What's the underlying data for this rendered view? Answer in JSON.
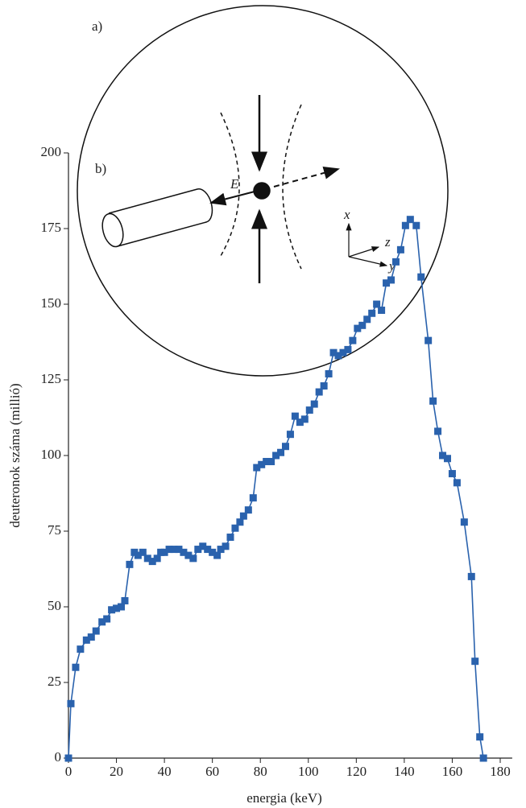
{
  "diagram": {
    "label": "a)",
    "field_label": "E",
    "axis_x": "x",
    "axis_z": "z",
    "axis_y": "y"
  },
  "chart_data": {
    "type": "line",
    "annotation": "b)",
    "xlabel": "energia (keV)",
    "ylabel": "deuteronok száma (millió)",
    "xlim": [
      0,
      185
    ],
    "ylim": [
      0,
      200
    ],
    "xticks": [
      0,
      20,
      40,
      60,
      80,
      100,
      120,
      140,
      160,
      180
    ],
    "yticks": [
      0,
      25,
      50,
      75,
      100,
      125,
      150,
      175,
      200
    ],
    "series": [
      {
        "color": "#2a62ad",
        "x": [
          0,
          1,
          3,
          5,
          7.5,
          9.5,
          11.5,
          14,
          16,
          18,
          20,
          22,
          23.5,
          25.5,
          27.5,
          29,
          31,
          33,
          35,
          37,
          38.5,
          40,
          42,
          44,
          46,
          48,
          50,
          52,
          54,
          56,
          58,
          60,
          62,
          63.5,
          65.5,
          67.5,
          69.5,
          71.5,
          73,
          75,
          77,
          78.5,
          80.5,
          82.5,
          84.5,
          86.5,
          88.5,
          90.5,
          92.5,
          94.5,
          96.5,
          98.5,
          100.5,
          102.5,
          104.5,
          106.5,
          108.5,
          110.5,
          112.5,
          114.5,
          116.5,
          118.5,
          120.5,
          122.5,
          124.5,
          126.5,
          128.5,
          130.5,
          132.5,
          134.5,
          136.5,
          138.5,
          140.5,
          142.5,
          145,
          147,
          150,
          152,
          154,
          156,
          158,
          160,
          162,
          165,
          168,
          169.5,
          171.5,
          173
        ],
        "values": [
          0,
          18,
          30,
          36,
          39,
          40,
          42,
          45,
          46,
          49,
          49.5,
          50,
          52,
          64,
          68,
          67,
          68,
          66,
          65,
          66,
          68,
          68,
          69,
          69,
          69,
          68,
          67,
          66,
          69,
          70,
          69,
          68,
          67,
          69,
          70,
          73,
          76,
          78,
          80,
          82,
          86,
          96,
          97,
          98,
          98,
          100,
          101,
          103,
          107,
          113,
          111,
          112,
          115,
          117,
          121,
          123,
          127,
          134,
          133,
          134,
          135,
          138,
          142,
          143,
          145,
          147,
          150,
          148,
          157,
          158,
          164,
          168,
          176,
          178,
          176,
          159,
          138,
          118,
          108,
          100,
          99,
          94,
          91,
          78,
          60,
          32,
          7,
          0
        ]
      }
    ]
  }
}
